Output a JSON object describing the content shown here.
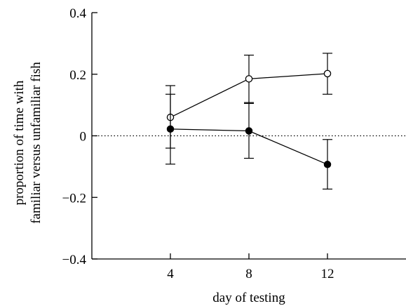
{
  "chart_data": {
    "type": "line",
    "xlabel": "day of testing",
    "ylabel_lines": [
      "proportion of time with",
      "familiar versus unfamiliar fish"
    ],
    "xlim": [
      0,
      16
    ],
    "ylim": [
      -0.4,
      0.4
    ],
    "x_ticks": [
      4,
      8,
      12
    ],
    "x_tick_labels": [
      "4",
      "8",
      "12"
    ],
    "y_ticks": [
      -0.4,
      -0.2,
      0,
      0.2,
      0.4
    ],
    "y_tick_labels": [
      "−0.4",
      "−0.2",
      "0",
      "0.2",
      "0.4"
    ],
    "reference_line": {
      "y": 0,
      "style": "dotted"
    },
    "grid": false,
    "series": [
      {
        "marker": "open-circle",
        "x": [
          4,
          8,
          12
        ],
        "y": [
          0.06,
          0.185,
          0.202
        ],
        "err_low": [
          -0.04,
          0.105,
          0.135
        ],
        "err_high": [
          0.163,
          0.262,
          0.268
        ]
      },
      {
        "marker": "filled-circle",
        "x": [
          4,
          8,
          12
        ],
        "y": [
          0.022,
          0.016,
          -0.093
        ],
        "err_low": [
          -0.092,
          -0.073,
          -0.173
        ],
        "err_high": [
          0.135,
          0.108,
          -0.012
        ]
      }
    ]
  }
}
